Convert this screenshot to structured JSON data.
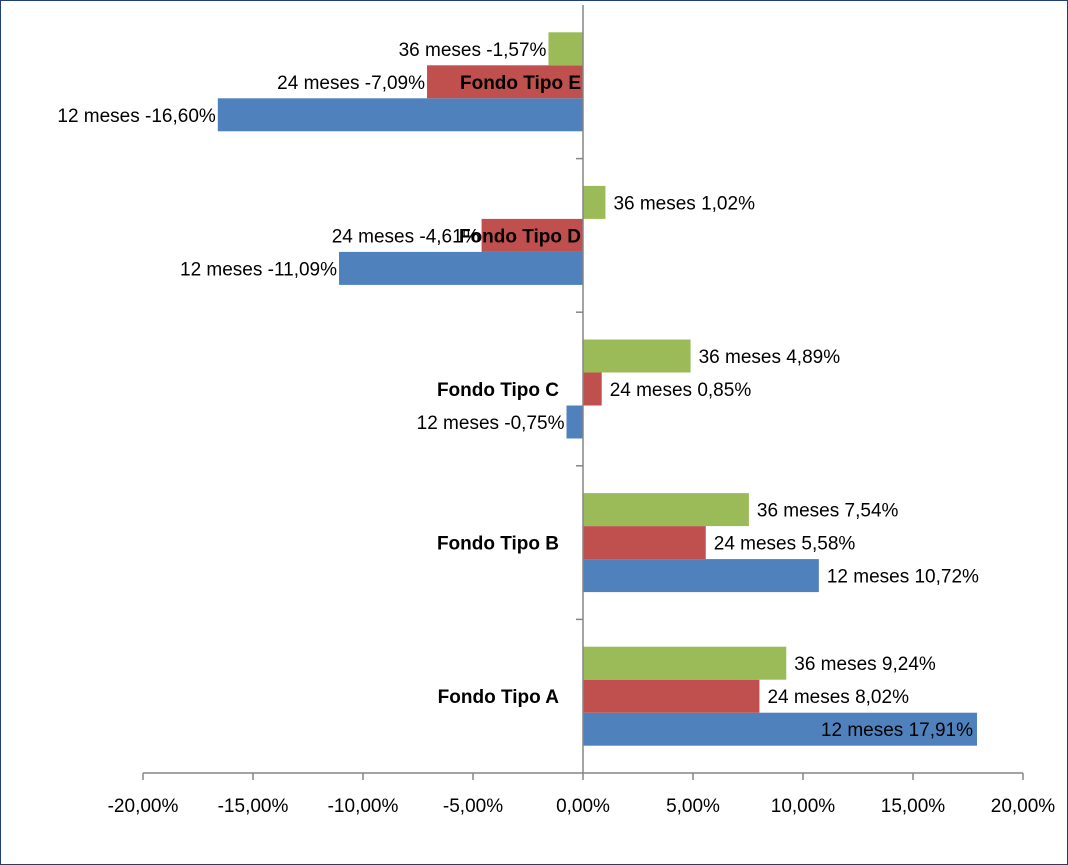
{
  "chart_data": {
    "type": "bar",
    "orientation": "horizontal",
    "categories": [
      "Fondo Tipo A",
      "Fondo Tipo B",
      "Fondo Tipo C",
      "Fondo Tipo D",
      "Fondo Tipo E"
    ],
    "series": [
      {
        "name": "12  meses",
        "color": "#4f81bd",
        "values": [
          17.91,
          10.72,
          -0.75,
          -11.09,
          -16.6
        ],
        "labels": [
          "12  meses 17,91%",
          "12  meses 10,72%",
          "12  meses -0,75%",
          "12  meses -11,09%",
          "12  meses -16,60%"
        ]
      },
      {
        "name": "24  meses",
        "color": "#c0504d",
        "values": [
          8.02,
          5.58,
          0.85,
          -4.61,
          -7.09
        ],
        "labels": [
          "24  meses 8,02%",
          "24  meses 5,58%",
          "24  meses 0,85%",
          "24  meses -4,61%",
          "24  meses -7,09%"
        ]
      },
      {
        "name": "36  meses",
        "color": "#9bbb59",
        "values": [
          9.24,
          7.54,
          4.89,
          1.02,
          -1.57
        ],
        "labels": [
          "36  meses 9,24%",
          "36  meses 7,54%",
          "36  meses 4,89%",
          "36  meses 1,02%",
          "36  meses -1,57%"
        ]
      }
    ],
    "xlim": [
      -20,
      20
    ],
    "xticks": [
      -20,
      -15,
      -10,
      -5,
      0,
      5,
      10,
      15,
      20
    ],
    "xtick_labels": [
      "-20,00%",
      "-15,00%",
      "-10,00%",
      "-5,00%",
      "0,00%",
      "5,00%",
      "10,00%",
      "15,00%",
      "20,00%"
    ],
    "title": "",
    "xlabel": "",
    "ylabel": "",
    "grid": false,
    "legend": "none"
  }
}
